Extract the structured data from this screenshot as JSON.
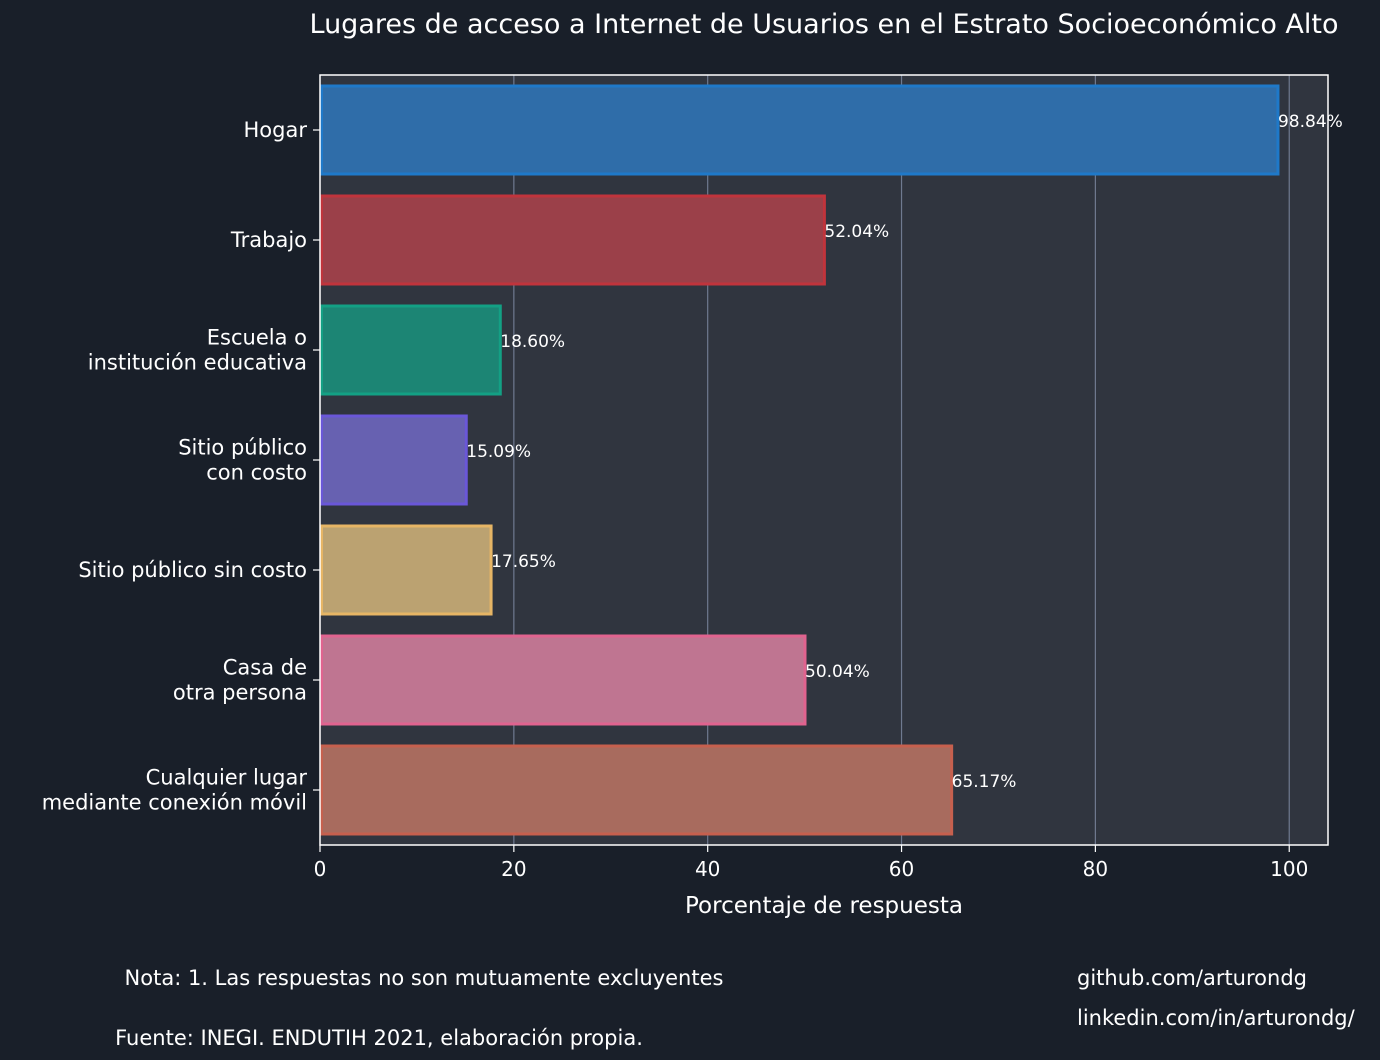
{
  "chart_data": {
    "type": "bar",
    "orientation": "horizontal",
    "title": "Lugares de acceso a Internet de Usuarios en el Estrato Socioeconómico Alto",
    "xlabel": "Porcentaje de respuesta",
    "ylabel": "",
    "xlim": [
      0,
      104
    ],
    "x_ticks": [
      0,
      20,
      40,
      60,
      80,
      100
    ],
    "grid": true,
    "categories": [
      [
        "Hogar"
      ],
      [
        "Trabajo"
      ],
      [
        "Escuela o",
        "institución educativa"
      ],
      [
        "Sitio público",
        "con costo"
      ],
      [
        "Sitio público sin costo"
      ],
      [
        "Casa de",
        "otra persona"
      ],
      [
        "Cualquier lugar",
        "mediante conexión móvil"
      ]
    ],
    "values": [
      98.84,
      52.04,
      18.6,
      15.09,
      17.65,
      50.04,
      65.17
    ],
    "value_labels": [
      "98.84%",
      "52.04%",
      "18.60%",
      "15.09%",
      "17.65%",
      "50.04%",
      "65.17%"
    ],
    "colors": [
      "#2f6da9",
      "#9b4049",
      "#1c8574",
      "#6761b1",
      "#bba271",
      "#bf7591",
      "#a86b5e"
    ],
    "edge_colors": [
      "#1f79c9",
      "#c0343c",
      "#13a084",
      "#6a57d8",
      "#e6b565",
      "#e0638f",
      "#c6604e"
    ]
  },
  "footer": {
    "note": "Nota: 1. Las respuestas no son mutuamente excluyentes",
    "source": "Fuente: INEGI. ENDUTIH 2021, elaboración propia.",
    "github": "github.com/arturondg",
    "linkedin": "linkedin.com/in/arturondg/"
  }
}
